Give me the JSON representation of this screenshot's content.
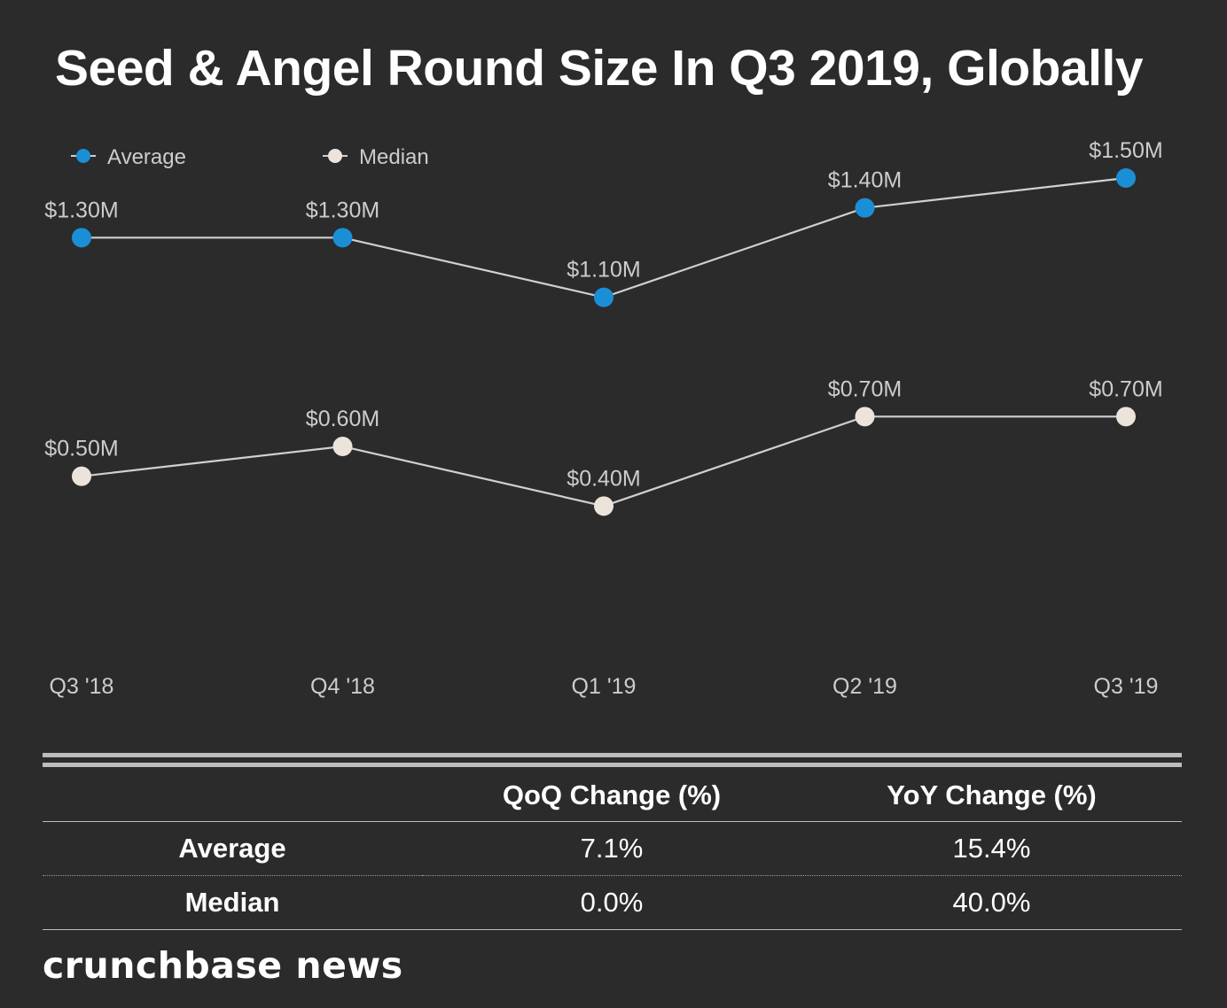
{
  "title": "Seed & Angel Round Size In Q3 2019, Globally",
  "colors": {
    "background": "#2b2b2b",
    "average": "#1b8fd6",
    "median": "#ece3da",
    "line": "#d0d0d0",
    "label": "#cccccc"
  },
  "chart_data": {
    "type": "line",
    "title": "Seed & Angel Round Size In Q3 2019, Globally",
    "xlabel": "",
    "ylabel": "",
    "categories": [
      "Q3 '18",
      "Q4 '18",
      "Q1 '19",
      "Q2 '19",
      "Q3 '19"
    ],
    "ylim": [
      0,
      1.8
    ],
    "legend_position": "top-left",
    "grid": false,
    "series": [
      {
        "name": "Average",
        "color": "#1b8fd6",
        "values": [
          1.3,
          1.3,
          1.1,
          1.4,
          1.5
        ],
        "labels": [
          "$1.30M",
          "$1.30M",
          "$1.10M",
          "$1.40M",
          "$1.50M"
        ]
      },
      {
        "name": "Median",
        "color": "#ece3da",
        "values": [
          0.5,
          0.6,
          0.4,
          0.7,
          0.7
        ],
        "labels": [
          "$0.50M",
          "$0.60M",
          "$0.40M",
          "$0.70M",
          "$0.70M"
        ]
      }
    ]
  },
  "table": {
    "headers": [
      "",
      "QoQ Change (%)",
      "YoY Change (%)"
    ],
    "rows": [
      {
        "label": "Average",
        "qoq": "7.1%",
        "yoy": "15.4%"
      },
      {
        "label": "Median",
        "qoq": "0.0%",
        "yoy": "40.0%"
      }
    ]
  },
  "brand": "crunchbase news"
}
